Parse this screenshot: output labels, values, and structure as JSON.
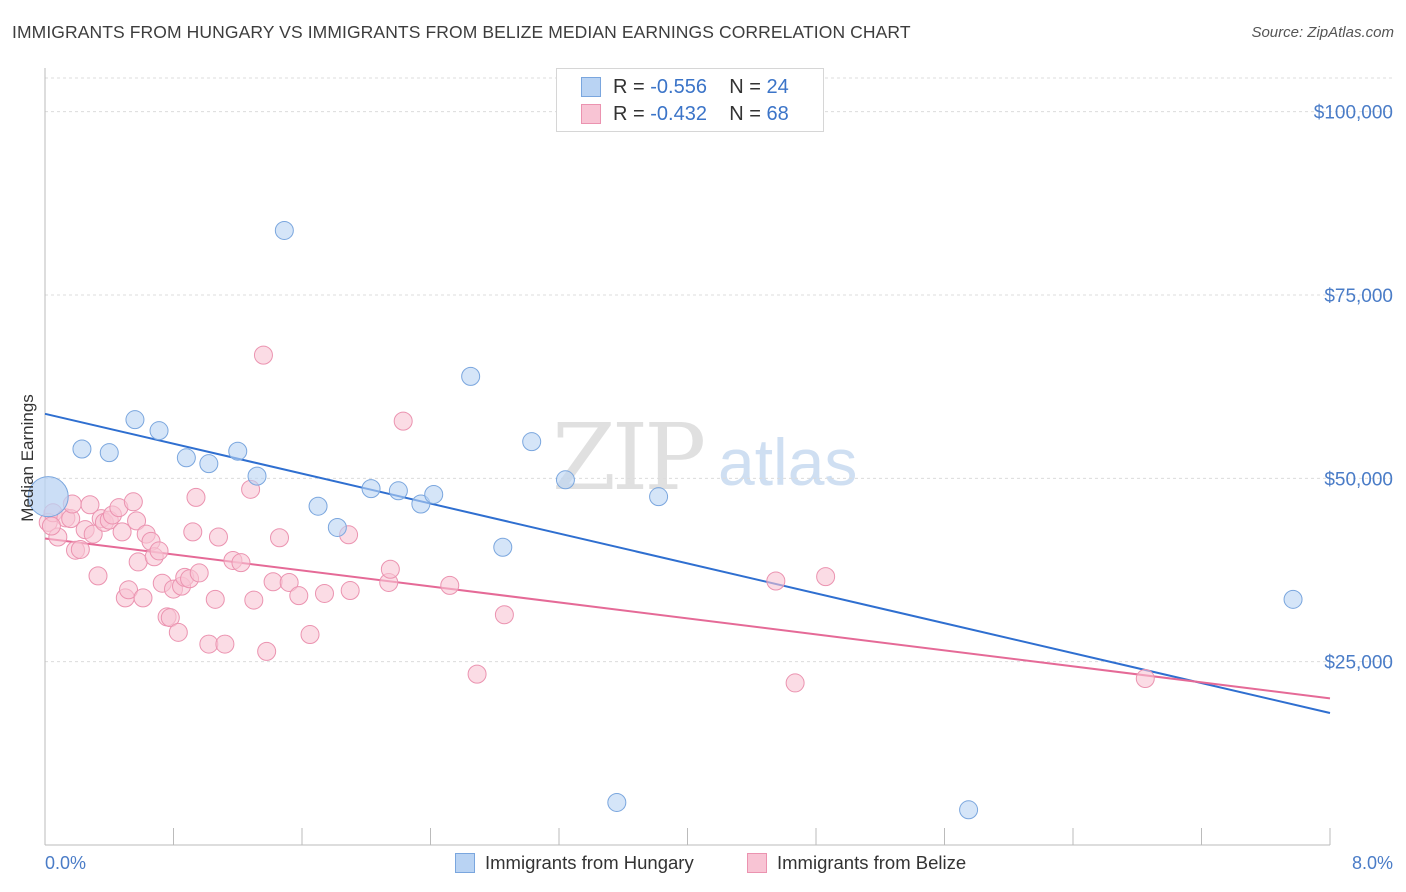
{
  "title": "IMMIGRANTS FROM HUNGARY VS IMMIGRANTS FROM BELIZE MEDIAN EARNINGS CORRELATION CHART",
  "source": "Source: ZipAtlas.com",
  "watermark": {
    "zip": "ZIP",
    "atlas": "atlas"
  },
  "legend": {
    "hungary": {
      "r_label": "R = ",
      "r_value": "-0.556",
      "n_label": "N = ",
      "n_value": "24"
    },
    "belize": {
      "r_label": "R = ",
      "r_value": "-0.432",
      "n_label": "N = ",
      "n_value": "68"
    }
  },
  "bottom_legend": {
    "hungary": "Immigrants from Hungary",
    "belize": "Immigrants from Belize"
  },
  "colors": {
    "hungary_fill": "#b9d3f3",
    "hungary_stroke": "#7aa6de",
    "hungary_line": "#2f6fd0",
    "belize_fill": "#f8c4d4",
    "belize_stroke": "#eb93b0",
    "belize_line": "#e56a97",
    "grid": "#dcdcdc",
    "tick_label": "#4a7cc7"
  },
  "chart_data": {
    "type": "scatter",
    "xlabel": "",
    "ylabel": "Median Earnings",
    "xlim": [
      0,
      8
    ],
    "ylim": [
      0,
      105000
    ],
    "x_tick_labels": [
      "0.0%",
      "8.0%"
    ],
    "y_ticks": [
      25000,
      50000,
      75000,
      100000
    ],
    "y_tick_labels": [
      "$25,000",
      "$50,000",
      "$75,000",
      "$100,000"
    ],
    "grid": "horizontal dashed",
    "series": [
      {
        "name": "Immigrants from Hungary",
        "points": [
          [
            0.02,
            47500
          ],
          [
            0.23,
            54000
          ],
          [
            0.4,
            53500
          ],
          [
            0.56,
            58000
          ],
          [
            0.71,
            56500
          ],
          [
            0.88,
            52800
          ],
          [
            1.02,
            52000
          ],
          [
            1.2,
            53700
          ],
          [
            1.32,
            50300
          ],
          [
            1.49,
            83800
          ],
          [
            1.7,
            46200
          ],
          [
            1.82,
            43300
          ],
          [
            2.03,
            48600
          ],
          [
            2.2,
            48300
          ],
          [
            2.34,
            46500
          ],
          [
            2.42,
            47800
          ],
          [
            2.65,
            63900
          ],
          [
            2.85,
            40600
          ],
          [
            3.03,
            55000
          ],
          [
            3.24,
            49800
          ],
          [
            3.56,
            5800
          ],
          [
            3.82,
            47500
          ],
          [
            5.75,
            4800
          ],
          [
            7.77,
            33500
          ]
        ],
        "trend": {
          "x": [
            0,
            8
          ],
          "y": [
            58800,
            18000
          ]
        }
      },
      {
        "name": "Immigrants from Belize",
        "points": [
          [
            0.02,
            44000
          ],
          [
            0.05,
            45300
          ],
          [
            0.08,
            42000
          ],
          [
            0.13,
            44600
          ],
          [
            0.16,
            44500
          ],
          [
            0.17,
            46500
          ],
          [
            0.19,
            40200
          ],
          [
            0.22,
            40300
          ],
          [
            0.25,
            43000
          ],
          [
            0.28,
            46400
          ],
          [
            0.3,
            42400
          ],
          [
            0.33,
            36700
          ],
          [
            0.35,
            44500
          ],
          [
            0.37,
            44000
          ],
          [
            0.4,
            44300
          ],
          [
            0.42,
            45000
          ],
          [
            0.46,
            46000
          ],
          [
            0.48,
            42700
          ],
          [
            0.5,
            33700
          ],
          [
            0.52,
            34800
          ],
          [
            0.55,
            46800
          ],
          [
            0.57,
            44200
          ],
          [
            0.58,
            38600
          ],
          [
            0.61,
            33700
          ],
          [
            0.63,
            42400
          ],
          [
            0.66,
            41400
          ],
          [
            0.68,
            39300
          ],
          [
            0.71,
            40100
          ],
          [
            0.73,
            35700
          ],
          [
            0.76,
            31100
          ],
          [
            0.78,
            31000
          ],
          [
            0.8,
            34900
          ],
          [
            0.83,
            29000
          ],
          [
            0.85,
            35300
          ],
          [
            0.87,
            36500
          ],
          [
            0.9,
            36300
          ],
          [
            0.92,
            42700
          ],
          [
            0.94,
            47400
          ],
          [
            0.96,
            37100
          ],
          [
            1.02,
            27400
          ],
          [
            1.06,
            33500
          ],
          [
            1.08,
            42000
          ],
          [
            1.12,
            27400
          ],
          [
            1.17,
            38800
          ],
          [
            1.22,
            38500
          ],
          [
            1.28,
            48500
          ],
          [
            1.3,
            33400
          ],
          [
            1.36,
            66800
          ],
          [
            1.38,
            26400
          ],
          [
            1.42,
            35900
          ],
          [
            1.46,
            41900
          ],
          [
            1.52,
            35800
          ],
          [
            1.58,
            34000
          ],
          [
            1.65,
            28700
          ],
          [
            1.74,
            34300
          ],
          [
            1.89,
            42300
          ],
          [
            1.9,
            34700
          ],
          [
            2.14,
            35800
          ],
          [
            2.15,
            37600
          ],
          [
            2.23,
            57800
          ],
          [
            2.52,
            35400
          ],
          [
            2.69,
            23300
          ],
          [
            2.86,
            31400
          ],
          [
            4.55,
            36000
          ],
          [
            4.67,
            22100
          ],
          [
            4.86,
            36600
          ],
          [
            6.85,
            22700
          ],
          [
            0.04,
            43500
          ]
        ],
        "trend": {
          "x": [
            0,
            8
          ],
          "y": [
            41800,
            20000
          ]
        }
      }
    ]
  }
}
